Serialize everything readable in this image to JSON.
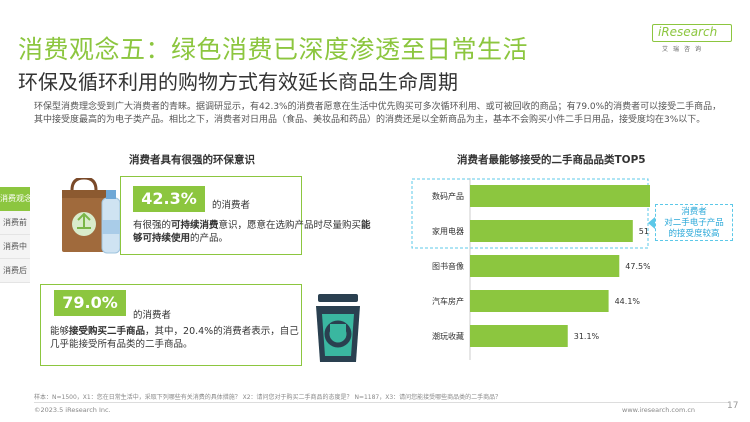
{
  "header": {
    "title": "消费观念五：绿色消费已深度渗透至日常生活",
    "subtitle": "环保及循环利用的购物方式有效延长商品生命周期",
    "intro": "环保型消费理念受到广大消费者的青睐。据调研显示，有42.3%的消费者愿意在生活中优先购买可多次循环利用、或可被回收的商品；有79.0%的消费者可以接受二手商品，其中接受度最高的为电子类产品。相比之下，消费者对日用品（食品、美妆品和药品）的消费还是以全新商品为主，基本不会购买小件二手日用品，接受度均在3%以下。"
  },
  "logo": {
    "brand": "iResearch",
    "sub": "艾瑞咨询"
  },
  "side_nav": [
    "消费观念",
    "消费前",
    "消费中",
    "消费后"
  ],
  "left_panel": {
    "section_title": "消费者具有很强的环保意识",
    "stat1": {
      "value": "42.3%",
      "suffix": "的消费者",
      "desc_a": "有很强的",
      "desc_b": "可持续消费",
      "desc_c": "意识，愿意在选购产品时尽量购买",
      "desc_d": "能够可持续使用",
      "desc_e": "的产品。"
    },
    "stat2": {
      "value": "79.0%",
      "suffix": "的消费者",
      "desc_a": "能够",
      "desc_b": "接受购买二手商品",
      "desc_c": "，其中，20.4%的消费者表示，自己几乎能接受所有品类的二手商品。"
    }
  },
  "chart_data": {
    "type": "bar",
    "orientation": "horizontal",
    "title": "消费者最能够接受的二手商品品类TOP5",
    "categories": [
      "数码产品",
      "家用电器",
      "图书音像",
      "汽车房产",
      "潮玩收藏"
    ],
    "values": [
      65.0,
      51.8,
      47.5,
      44.1,
      31.1
    ],
    "labels": [
      "65.0%",
      "51.8%",
      "47.5%",
      "44.1%",
      "31.1%"
    ],
    "xlim": [
      0,
      70
    ],
    "grid": false,
    "bar_color": "#8cc63f",
    "highlight": {
      "categories": [
        "数码产品",
        "家用电器"
      ],
      "text_line1": "消费者",
      "text_line2": "对二手电子产品",
      "text_line3": "的接受度较高",
      "color": "#5cc8e8"
    }
  },
  "footer": {
    "note": "样本：N=1500，X1：您在日常生活中，采取下列哪些有关消费的具体措施？ X2：请问您对于购买二手商品的态度是？ N=1187，X3：请问您能接受哪些商品类的二手商品？",
    "copyright": "©2023.5 iResearch Inc.",
    "website": "www.iresearch.com.cn",
    "page": "17"
  },
  "colors": {
    "accent": "#8cc63f",
    "highlight": "#5cc8e8",
    "text": "#333333"
  }
}
